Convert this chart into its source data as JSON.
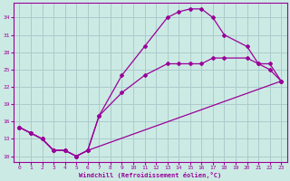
{
  "xlabel": "Windchill (Refroidissement éolien,°C)",
  "bg_color": "#cceae4",
  "grid_color": "#aacccc",
  "line_color": "#990099",
  "xlim": [
    -0.5,
    23.5
  ],
  "ylim": [
    9.0,
    36.5
  ],
  "xticks": [
    0,
    1,
    2,
    3,
    4,
    5,
    6,
    7,
    8,
    9,
    10,
    11,
    12,
    13,
    14,
    15,
    16,
    17,
    18,
    19,
    20,
    21,
    22,
    23
  ],
  "yticks": [
    10,
    13,
    16,
    19,
    22,
    25,
    28,
    31,
    34
  ],
  "line1_x": [
    0,
    1,
    2,
    3,
    4,
    5,
    6,
    7,
    9,
    11,
    13,
    14,
    15,
    16,
    17,
    18,
    20,
    21,
    22,
    23
  ],
  "line1_y": [
    15,
    14,
    13,
    11,
    11,
    10,
    11,
    17,
    24,
    29,
    34,
    35,
    35.5,
    35.5,
    34,
    31,
    29,
    26,
    25,
    23
  ],
  "line2_x": [
    0,
    1,
    2,
    3,
    4,
    5,
    6,
    7,
    9,
    11,
    13,
    14,
    15,
    16,
    17,
    18,
    20,
    21,
    22,
    23
  ],
  "line2_y": [
    15,
    14,
    13,
    11,
    11,
    10,
    11,
    17,
    21,
    24,
    26,
    26,
    26,
    26,
    27,
    27,
    27,
    26,
    26,
    23
  ],
  "line3_x": [
    0,
    1,
    2,
    3,
    4,
    5,
    6,
    23
  ],
  "line3_y": [
    15,
    14,
    13,
    11,
    11,
    10,
    11,
    23
  ]
}
